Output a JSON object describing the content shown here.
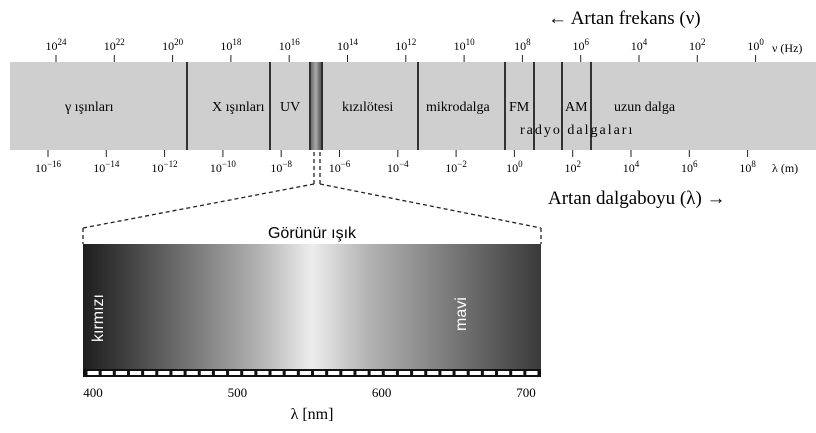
{
  "frequency_axis": {
    "direction_label": "← Artan frekans  (ν)",
    "unit_label": "ν (Hz)",
    "ticks": [
      {
        "base": "10",
        "exp": "24"
      },
      {
        "base": "10",
        "exp": "22"
      },
      {
        "base": "10",
        "exp": "20"
      },
      {
        "base": "10",
        "exp": "18"
      },
      {
        "base": "10",
        "exp": "16"
      },
      {
        "base": "10",
        "exp": "14"
      },
      {
        "base": "10",
        "exp": "12"
      },
      {
        "base": "10",
        "exp": "10"
      },
      {
        "base": "10",
        "exp": "8"
      },
      {
        "base": "10",
        "exp": "6"
      },
      {
        "base": "10",
        "exp": "4"
      },
      {
        "base": "10",
        "exp": "2"
      },
      {
        "base": "10",
        "exp": "0"
      }
    ]
  },
  "wavelength_axis": {
    "direction_label": "Artan dalgaboyu (λ) →",
    "unit_label": "λ (m)",
    "ticks": [
      {
        "base": "10",
        "exp": "−16"
      },
      {
        "base": "10",
        "exp": "−14"
      },
      {
        "base": "10",
        "exp": "−12"
      },
      {
        "base": "10",
        "exp": "−10"
      },
      {
        "base": "10",
        "exp": "−8"
      },
      {
        "base": "10",
        "exp": "−6"
      },
      {
        "base": "10",
        "exp": "−4"
      },
      {
        "base": "10",
        "exp": "−2"
      },
      {
        "base": "10",
        "exp": "0"
      },
      {
        "base": "10",
        "exp": "2"
      },
      {
        "base": "10",
        "exp": "4"
      },
      {
        "base": "10",
        "exp": "6"
      },
      {
        "base": "10",
        "exp": "8"
      }
    ]
  },
  "bands": {
    "gamma": "γ ışınları",
    "xray": "X ışınları",
    "uv": "UV",
    "infrared": "kızılötesi",
    "microwave": "mikrodalga",
    "fm": "FM",
    "am": "AM",
    "longwave": "uzun dalga",
    "radio": "radyo dalgaları"
  },
  "visible": {
    "title": "Görünür ışık",
    "red_label": "kırmızı",
    "blue_label": "mavi",
    "axis_label": "λ [nm]",
    "ticks": [
      "400",
      "500",
      "600",
      "700"
    ]
  },
  "colors": {
    "spectrum_bar": "#cfcfcf",
    "divider": "#333333"
  }
}
